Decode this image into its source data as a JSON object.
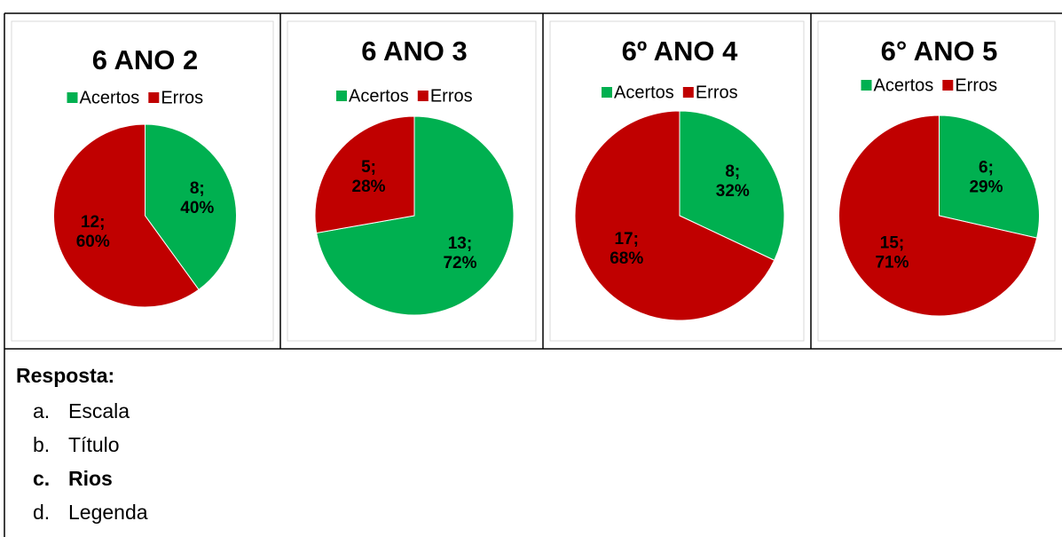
{
  "chart_data": [
    {
      "type": "pie",
      "title": "6 ANO 2",
      "categories": [
        "Acertos",
        "Erros"
      ],
      "values": [
        8,
        12
      ],
      "value_labels": [
        [
          "8;",
          "40%"
        ],
        [
          "12;",
          "60%"
        ]
      ],
      "colors": [
        "#00b050",
        "#c00000"
      ]
    },
    {
      "type": "pie",
      "title": "6 ANO 3",
      "categories": [
        "Acertos",
        "Erros"
      ],
      "values": [
        13,
        5
      ],
      "value_labels": [
        [
          "13;",
          "72%"
        ],
        [
          "5;",
          "28%"
        ]
      ],
      "colors": [
        "#00b050",
        "#c00000"
      ]
    },
    {
      "type": "pie",
      "title": "6º ANO 4",
      "categories": [
        "Acertos",
        "Erros"
      ],
      "values": [
        8,
        17
      ],
      "value_labels": [
        [
          "8;",
          "32%"
        ],
        [
          "17;",
          "68%"
        ]
      ],
      "colors": [
        "#00b050",
        "#c00000"
      ]
    },
    {
      "type": "pie",
      "title": "6° ANO 5",
      "categories": [
        "Acertos",
        "Erros"
      ],
      "values": [
        6,
        15
      ],
      "value_labels": [
        [
          "6;",
          "29%"
        ],
        [
          "15;",
          "71%"
        ]
      ],
      "colors": [
        "#00b050",
        "#c00000"
      ]
    }
  ],
  "answer": {
    "heading": "Resposta:",
    "items": [
      {
        "marker": "a.",
        "text": "Escala"
      },
      {
        "marker": "b.",
        "text": "Título"
      },
      {
        "marker": "c.",
        "text": "Rios"
      },
      {
        "marker": "d.",
        "text": "Legenda"
      }
    ]
  }
}
